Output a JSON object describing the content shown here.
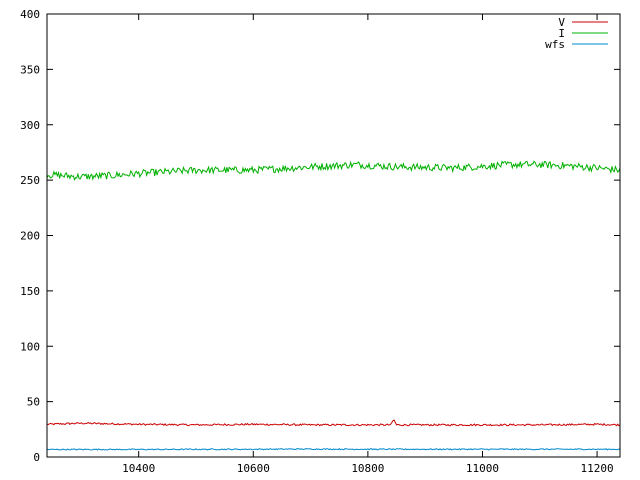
{
  "chart_data": {
    "type": "line",
    "xlim": [
      10240,
      11240
    ],
    "ylim": [
      0,
      400
    ],
    "x_ticks": [
      10400,
      10600,
      10800,
      11000,
      11200
    ],
    "y_ticks": [
      0,
      50,
      100,
      150,
      200,
      250,
      300,
      350,
      400
    ],
    "grid": false,
    "legend_position": "top-right",
    "series": [
      {
        "name": "V",
        "color": "#cc0000",
        "x": [
          10240,
          10300,
          10400,
          10500,
          10600,
          10700,
          10800,
          10840,
          10845,
          10850,
          10900,
          11000,
          11100,
          11200,
          11240
        ],
        "y": [
          29.5,
          30.5,
          29.5,
          29,
          29.5,
          29,
          29,
          29,
          34,
          29,
          29,
          29,
          29,
          29.5,
          29
        ],
        "noise": 0.8
      },
      {
        "name": "I",
        "color": "#00b000",
        "x": [
          10240,
          10300,
          10350,
          10400,
          10500,
          10600,
          10700,
          10780,
          10850,
          10950,
          11050,
          11100,
          11150,
          11200,
          11240
        ],
        "y": [
          255,
          253,
          254,
          256,
          259,
          259,
          262,
          264,
          262,
          261,
          264,
          264,
          263,
          261,
          259
        ],
        "noise": 3.2
      },
      {
        "name": "wfs",
        "color": "#0088cc",
        "x": [
          10240,
          10400,
          10600,
          10700,
          10800,
          11000,
          11200,
          11240
        ],
        "y": [
          6.8,
          6.8,
          7,
          7.2,
          7,
          7,
          7,
          7
        ],
        "noise": 0.5
      }
    ]
  }
}
